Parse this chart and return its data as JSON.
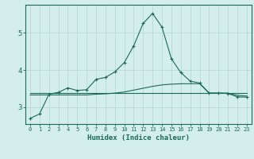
{
  "xlabel": "Humidex (Indice chaleur)",
  "bg_color": "#d4eded",
  "grid_color": "#b8d8d8",
  "line_color": "#1a6b5a",
  "x": [
    0,
    1,
    2,
    3,
    4,
    5,
    6,
    7,
    8,
    9,
    10,
    11,
    12,
    13,
    14,
    15,
    16,
    17,
    18,
    19,
    20,
    21,
    22,
    23
  ],
  "line1": [
    2.7,
    2.82,
    3.35,
    3.4,
    3.52,
    3.45,
    3.47,
    3.75,
    3.8,
    3.95,
    4.2,
    4.65,
    5.25,
    5.52,
    5.15,
    4.3,
    3.93,
    3.7,
    3.65,
    3.38,
    3.38,
    3.37,
    3.28,
    3.27
  ],
  "line2": [
    3.38,
    3.38,
    3.38,
    3.38,
    3.38,
    3.38,
    3.38,
    3.38,
    3.38,
    3.38,
    3.38,
    3.38,
    3.38,
    3.38,
    3.38,
    3.38,
    3.38,
    3.38,
    3.38,
    3.38,
    3.38,
    3.38,
    3.38,
    3.38
  ],
  "line3": [
    3.33,
    3.33,
    3.33,
    3.33,
    3.33,
    3.33,
    3.33,
    3.35,
    3.36,
    3.38,
    3.41,
    3.46,
    3.51,
    3.56,
    3.6,
    3.62,
    3.63,
    3.63,
    3.63,
    3.38,
    3.38,
    3.38,
    3.32,
    3.3
  ],
  "ylim": [
    2.55,
    5.75
  ],
  "yticks": [
    3,
    4,
    5
  ],
  "xticks": [
    0,
    1,
    2,
    3,
    4,
    5,
    6,
    7,
    8,
    9,
    10,
    11,
    12,
    13,
    14,
    15,
    16,
    17,
    18,
    19,
    20,
    21,
    22,
    23
  ]
}
